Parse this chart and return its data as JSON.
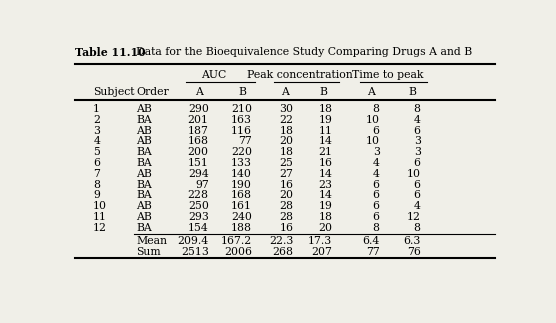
{
  "title": "Table 11.10",
  "title_desc": "Data for the Bioequivalence Study Comparing Drugs A and B",
  "group_headers": [
    "AUC",
    "Peak concentration",
    "Time to peak"
  ],
  "subjects": [
    1,
    2,
    3,
    4,
    5,
    6,
    7,
    8,
    9,
    10,
    11,
    12
  ],
  "orders": [
    "AB",
    "BA",
    "AB",
    "AB",
    "BA",
    "BA",
    "AB",
    "BA",
    "BA",
    "AB",
    "AB",
    "BA"
  ],
  "auc_a": [
    290,
    201,
    187,
    168,
    200,
    151,
    294,
    97,
    228,
    250,
    293,
    154
  ],
  "auc_b": [
    210,
    163,
    116,
    77,
    220,
    133,
    140,
    190,
    168,
    161,
    240,
    188
  ],
  "peak_a": [
    30,
    22,
    18,
    20,
    18,
    25,
    27,
    16,
    20,
    28,
    28,
    16
  ],
  "peak_b": [
    18,
    19,
    11,
    14,
    21,
    16,
    14,
    23,
    14,
    19,
    18,
    20
  ],
  "time_a": [
    8,
    10,
    6,
    10,
    3,
    4,
    4,
    6,
    6,
    6,
    6,
    8
  ],
  "time_b": [
    8,
    4,
    6,
    3,
    3,
    6,
    10,
    6,
    6,
    4,
    12,
    8
  ],
  "mean_auc_a": "209.4",
  "mean_auc_b": "167.2",
  "mean_peak_a": "22.3",
  "mean_peak_b": "17.3",
  "mean_time_a": "6.4",
  "mean_time_b": "6.3",
  "sum_auc_a": "2513",
  "sum_auc_b": "2006",
  "sum_peak_a": "268",
  "sum_peak_b": "207",
  "sum_time_a": "77",
  "sum_time_b": "76",
  "bg_color": "#f0efe8",
  "font_size": 7.8
}
